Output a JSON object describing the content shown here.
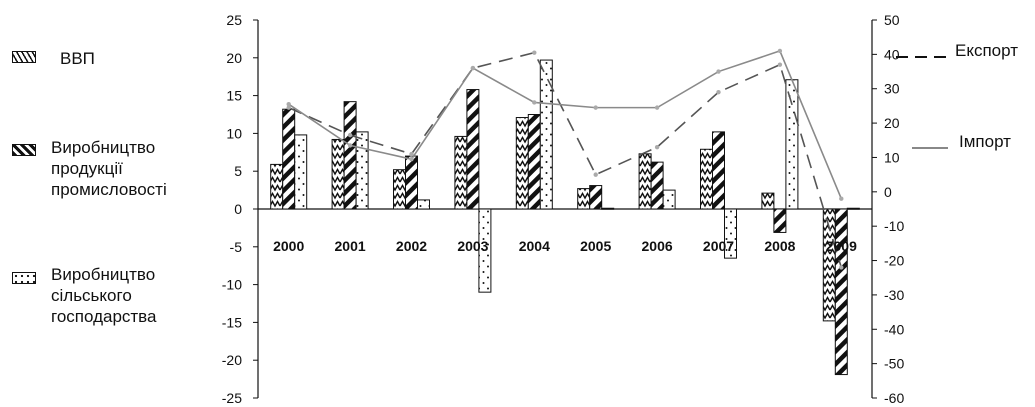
{
  "chart_data": {
    "type": "bar",
    "categories": [
      "2000",
      "2001",
      "2002",
      "2003",
      "2004",
      "2005",
      "2006",
      "2007",
      "2008",
      "2009"
    ],
    "series": [
      {
        "name": "ВВП",
        "kind": "bar",
        "axis": "left",
        "pattern": "zigzag",
        "values": [
          5.9,
          9.2,
          5.2,
          9.6,
          12.1,
          2.7,
          7.3,
          7.9,
          2.1,
          -14.8
        ]
      },
      {
        "name": "Виробництво продукції промисловості",
        "kind": "bar",
        "axis": "left",
        "pattern": "diagonal",
        "values": [
          13.2,
          14.2,
          7.0,
          15.8,
          12.5,
          3.1,
          6.2,
          10.2,
          -3.1,
          -21.9
        ]
      },
      {
        "name": "Виробництво сільського господарства",
        "kind": "bar",
        "axis": "left",
        "pattern": "dots",
        "values": [
          9.8,
          10.2,
          1.2,
          -11.0,
          19.7,
          0.1,
          2.5,
          -6.5,
          17.1,
          0.1
        ]
      },
      {
        "name": "Експорт",
        "kind": "line",
        "axis": "right",
        "style": "dashed",
        "values": [
          24.5,
          16.5,
          11.0,
          36.0,
          40.5,
          5.0,
          13.0,
          29.0,
          37.0,
          -22.0
        ]
      },
      {
        "name": "Імпорт",
        "kind": "line",
        "axis": "right",
        "style": "solid",
        "values": [
          25.5,
          13.5,
          9.5,
          36.0,
          26.0,
          24.5,
          24.5,
          35.0,
          41.0,
          -2.0
        ]
      }
    ],
    "yleft": {
      "ticks": [
        "25",
        "20",
        "15",
        "10",
        "5",
        "0",
        "-5",
        "-10",
        "-15",
        "-20",
        "-25"
      ],
      "lim": [
        -25,
        25
      ]
    },
    "yright": {
      "ticks": [
        "50",
        "40",
        "30",
        "20",
        "10",
        "0",
        "-10",
        "-20",
        "-30",
        "-40",
        "-50",
        "-60"
      ],
      "lim": [
        -60,
        50
      ]
    },
    "legend": {
      "gdp": "ВВП",
      "industry": "Виробництво\nпродукції\nпромисловості",
      "agriculture": "Виробництво\nсільського\nгосподарства",
      "export": "Експорт",
      "import": "Імпорт"
    },
    "colors": {
      "bars": "#111111",
      "export_line": "#555555",
      "import_line": "#8a8a8a"
    }
  }
}
